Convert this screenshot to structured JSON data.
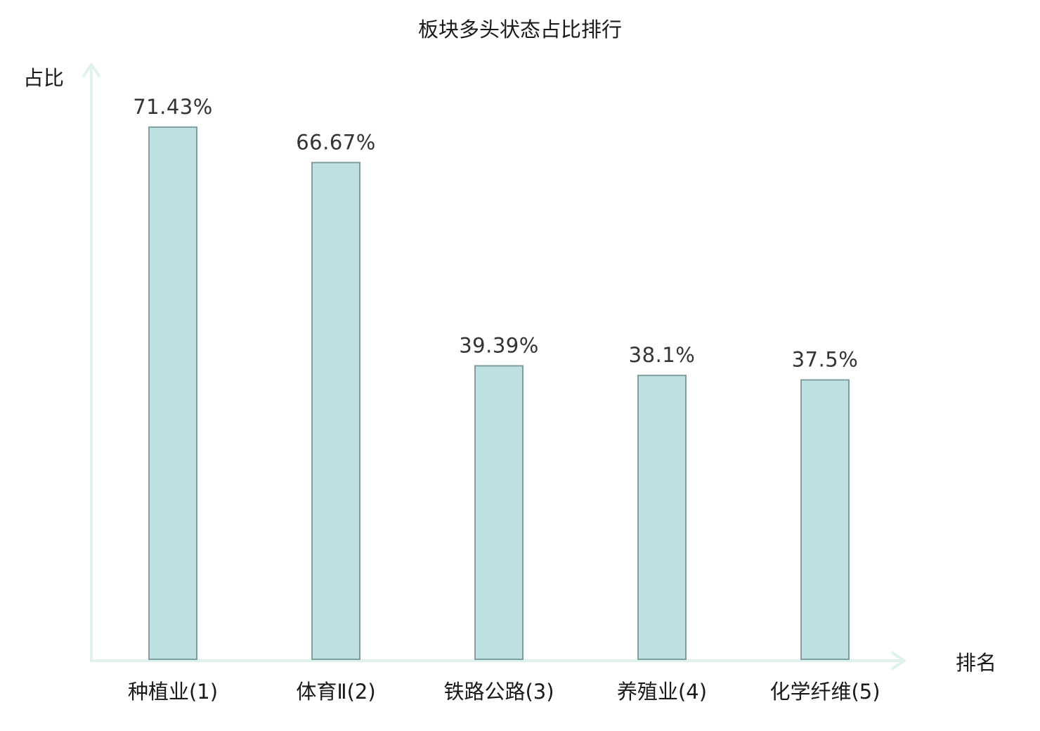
{
  "chart_data": {
    "type": "bar",
    "title": "板块多头状态占比排行",
    "xlabel": "排名",
    "ylabel": "占比",
    "categories": [
      "种植业(1)",
      "体育Ⅱ(2)",
      "铁路公路(3)",
      "养殖业(4)",
      "化学纤维(5)"
    ],
    "values": [
      71.43,
      66.67,
      39.39,
      38.1,
      37.5
    ],
    "value_labels": [
      "71.43%",
      "66.67%",
      "39.39%",
      "38.1%",
      "37.5%"
    ],
    "highlight_index": 2,
    "ylim": [
      0,
      80
    ],
    "grid": false,
    "legend": "none"
  },
  "colors": {
    "bar_fill": "#bde0e2",
    "bar_stroke": "#7f9ea0",
    "axis": "#dff2ee",
    "highlight_text": "#e0141b",
    "text": "#1a1a1a",
    "value_text": "#333333"
  }
}
